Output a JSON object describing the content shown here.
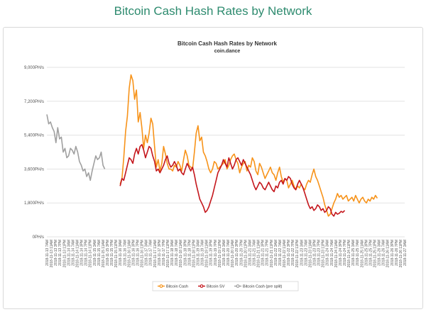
{
  "page_title": "Bitcoin Cash Hash Rates by Network",
  "chart_data": {
    "type": "line",
    "title": "Bitcoin Cash Hash Rates by Network",
    "subtitle": "coin.dance",
    "xlabel": "",
    "ylabel": "",
    "ylim": [
      0,
      9000
    ],
    "y_ticks": [
      0,
      1800,
      3600,
      5400,
      7200,
      9000
    ],
    "y_tick_labels": [
      "0PH/s",
      "1,800PH/s",
      "3,600PH/s",
      "5,400PH/s",
      "7,200PH/s",
      "9,000PH/s"
    ],
    "grid": true,
    "legend_position": "bottom-center",
    "x_tick_labels": [
      "2018-11-13 7AM",
      "2018-11-13 11AM",
      "2018-11-13 3PM",
      "2018-11-13 7PM",
      "2018-11-13 11PM",
      "2018-11-14 3AM",
      "2018-11-14 7AM",
      "2018-11-14 11AM",
      "2018-11-14 3PM",
      "2018-11-14 7PM",
      "2018-11-14 11PM",
      "2018-11-15 3AM",
      "2018-11-15 7AM",
      "2018-11-15 11AM",
      "2018-11-15 3PM",
      "2018-11-15 7PM",
      "2018-11-15 11PM",
      "2018-11-16 3AM",
      "2018-11-16 7AM",
      "2018-11-16 11AM",
      "2018-11-16 3PM",
      "2018-11-16 7PM",
      "2018-11-16 11PM",
      "2018-11-17 3AM",
      "2018-11-17 7AM",
      "2018-11-17 11AM",
      "2018-11-17 3PM",
      "2018-11-17 7PM",
      "2018-11-17 11PM",
      "2018-11-18 3AM",
      "2018-11-18 7AM",
      "2018-11-18 11AM",
      "2018-11-18 3PM",
      "2018-11-18 7PM",
      "2018-11-18 11PM",
      "2018-11-19 3AM",
      "2018-11-19 7AM",
      "2018-11-19 11AM",
      "2018-11-19 3PM",
      "2018-11-19 7PM",
      "2018-11-19 11PM",
      "2018-11-20 3AM",
      "2018-11-20 7AM",
      "2018-11-20 11AM",
      "2018-11-20 3PM",
      "2018-11-20 7PM",
      "2018-11-20 11PM",
      "2018-11-21 3AM",
      "2018-11-21 7AM",
      "2018-11-21 11AM",
      "2018-11-21 3PM",
      "2018-11-21 7PM",
      "2018-11-21 11PM",
      "2018-11-22 3AM",
      "2018-11-22 7AM",
      "2018-11-22 11AM",
      "2018-11-22 3PM",
      "2018-11-22 7PM",
      "2018-11-22 11PM",
      "2018-11-23 3AM",
      "2018-11-23 7AM",
      "2018-11-23 11AM",
      "2018-11-23 3PM",
      "2018-11-23 7PM",
      "2018-11-23 11PM",
      "2018-11-24 3AM",
      "2018-11-24 7AM",
      "2018-11-24 11AM",
      "2018-11-24 3PM",
      "2018-11-24 7PM",
      "2018-11-24 11PM",
      "2018-11-25 3AM",
      "2018-11-25 7AM",
      "2018-11-25 11AM",
      "2018-11-25 3PM",
      "2018-11-25 7PM",
      "2018-11-25 11PM",
      "2018-11-26 3AM",
      "2018-11-26 7AM",
      "2018-11-26 11AM",
      "2018-11-26 3PM",
      "2018-11-26 7PM",
      "2018-11-26 11PM",
      "2018-11-27 3AM"
    ],
    "series": [
      {
        "name": "Bitcoin Cash",
        "color": "#f7931a",
        "x_start": 17.0,
        "values": [
          2800,
          3100,
          4200,
          5600,
          6400,
          7900,
          8600,
          8300,
          7300,
          7800,
          6100,
          6600,
          5800,
          4700,
          5400,
          5000,
          5500,
          6300,
          6000,
          4800,
          3700,
          4100,
          3500,
          3900,
          4800,
          4400,
          3900,
          3600,
          3600,
          3500,
          3800,
          3700,
          4000,
          3800,
          3500,
          4100,
          4600,
          4300,
          3800,
          3700,
          3600,
          4500,
          5500,
          5900,
          5100,
          5300,
          4500,
          4300,
          4000,
          3600,
          3400,
          3600,
          4000,
          3900,
          3600,
          3700,
          3800,
          3900,
          4100,
          3600,
          3800,
          4100,
          4300,
          4400,
          4100,
          3900,
          3400,
          3700,
          3900,
          4000,
          3500,
          3800,
          3700,
          4200,
          4000,
          3500,
          3300,
          3900,
          3700,
          3400,
          3100,
          3300,
          3500,
          3700,
          3400,
          3300,
          3000,
          3400,
          3700,
          3200,
          2900,
          3100,
          3000,
          2600,
          2800,
          3000,
          2700,
          2500,
          2700,
          2600,
          2800,
          2600,
          2500,
          2800,
          3000,
          2900,
          3300,
          3600,
          3200,
          3000,
          2700,
          2400,
          2100,
          1700,
          1400,
          1100,
          1200,
          1500,
          1800,
          2000,
          2300,
          2100,
          2200,
          2000,
          2100,
          2200,
          1900,
          2000,
          2100,
          1900,
          2200,
          2000,
          1800,
          2000,
          2100,
          1900,
          1800,
          2000,
          1900,
          2100,
          2000,
          2200,
          2050
        ]
      },
      {
        "name": "Bitcoin SV",
        "color": "#c4161c",
        "x_start": 17.0,
        "values": [
          2700,
          3100,
          3000,
          3400,
          3800,
          4200,
          4100,
          3900,
          4400,
          4700,
          4400,
          4800,
          4900,
          4600,
          4200,
          4500,
          4800,
          4700,
          4300,
          4000,
          3500,
          3600,
          3400,
          3600,
          3800,
          4100,
          4300,
          3900,
          3700,
          3800,
          4000,
          3800,
          3500,
          3600,
          3400,
          3300,
          3600,
          3900,
          3700,
          3500,
          3700,
          3300,
          2800,
          2400,
          2000,
          1800,
          1600,
          1300,
          1400,
          1600,
          1900,
          2200,
          2600,
          3000,
          3400,
          3600,
          3800,
          4100,
          3900,
          3700,
          4200,
          3900,
          3600,
          3800,
          4100,
          4200,
          4000,
          3800,
          4100,
          3900,
          3700,
          3500,
          3300,
          3000,
          2700,
          2500,
          2700,
          2900,
          2800,
          2600,
          2500,
          2700,
          2900,
          2700,
          2500,
          2400,
          2700,
          2600,
          2900,
          3000,
          2800,
          3100,
          3000,
          3200,
          3100,
          2800,
          2600,
          2500,
          2800,
          3000,
          2800,
          2600,
          2300,
          2000,
          1700,
          1500,
          1600,
          1400,
          1500,
          1700,
          1600,
          1400,
          1500,
          1300,
          1400,
          1600,
          1500,
          1200,
          1100,
          1300,
          1200,
          1250,
          1350,
          1300,
          1400
        ]
      },
      {
        "name": "Bitcoin Cash (pre split)",
        "color": "#a0a0a0",
        "x_start": 0.0,
        "values": [
          6500,
          6000,
          6100,
          5800,
          5600,
          5000,
          5800,
          5200,
          5300,
          4500,
          4700,
          4200,
          4300,
          4700,
          4600,
          4400,
          4800,
          4500,
          4000,
          3800,
          3500,
          3600,
          3200,
          3400,
          3000,
          3500,
          3900,
          4300,
          4100,
          4200,
          4500,
          3800,
          3600
        ]
      }
    ]
  },
  "legend": {
    "items": [
      {
        "label": "Bitcoin Cash",
        "color": "#f7931a"
      },
      {
        "label": "Bitcoin SV",
        "color": "#c4161c"
      },
      {
        "label": "Bitcoin Cash (pre split)",
        "color": "#a0a0a0"
      }
    ]
  }
}
